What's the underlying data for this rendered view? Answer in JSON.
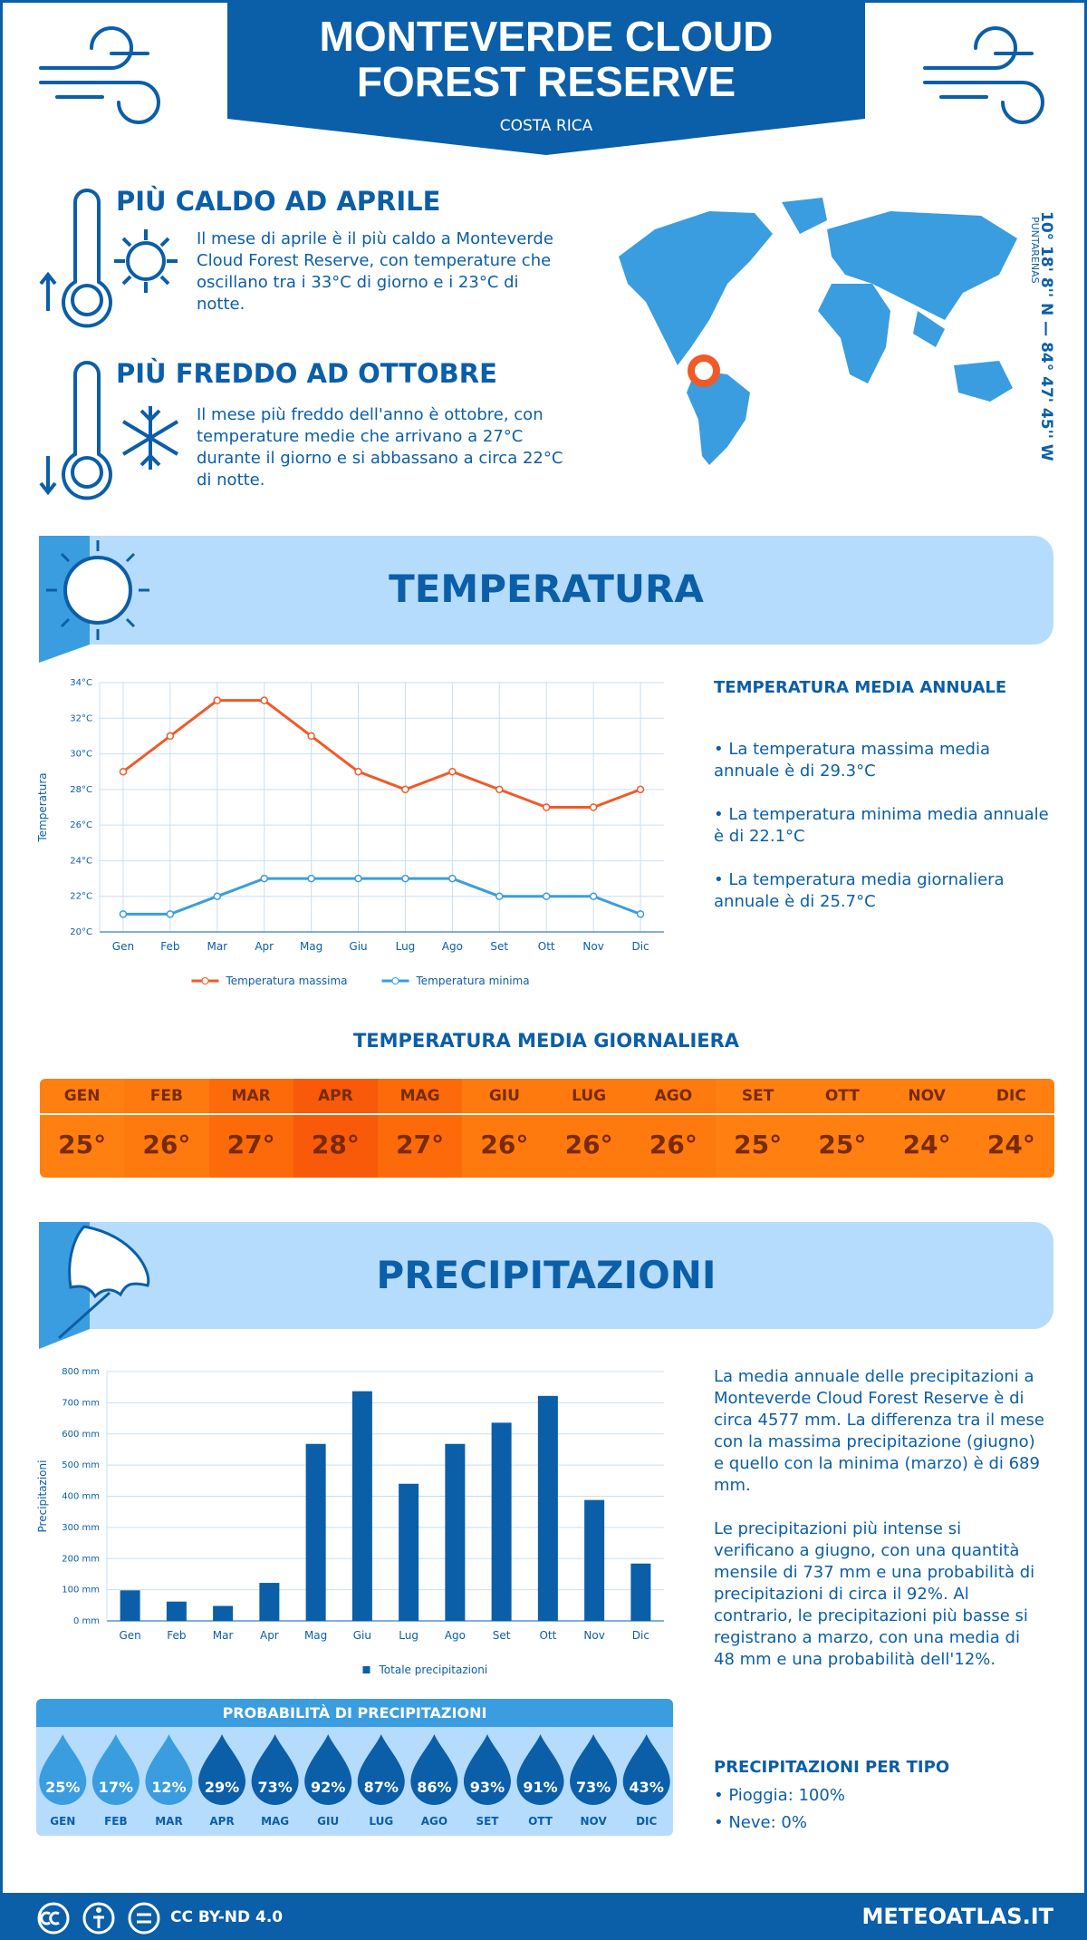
{
  "header": {
    "title": "MONTEVERDE CLOUD FOREST RESERVE",
    "subtitle": "COSTA RICA"
  },
  "hottest": {
    "title": "PIÙ CALDO AD APRILE",
    "text": "Il mese di aprile è il più caldo a Monteverde Cloud Forest Reserve, con temperature che oscillano tra i 33°C di giorno e i 23°C di notte."
  },
  "coldest": {
    "title": "PIÙ FREDDO AD OTTOBRE",
    "text": "Il mese più freddo dell'anno è ottobre, con temperature medie che arrivano a 27°C durante il giorno e si abbassano a circa 22°C di notte."
  },
  "coords": {
    "label": "10° 18' 8'' N — 84° 47' 45'' W",
    "region": "PUNTARENAS"
  },
  "temperature_section": {
    "title": "TEMPERATURA"
  },
  "precipitation_section": {
    "title": "PRECIPITAZIONI"
  },
  "chart_data": [
    {
      "type": "line",
      "y_label": "Temperatura",
      "categories": [
        "Gen",
        "Feb",
        "Mar",
        "Apr",
        "Mag",
        "Giu",
        "Lug",
        "Ago",
        "Set",
        "Ott",
        "Nov",
        "Dic"
      ],
      "series": [
        {
          "name": "Temperatura massima",
          "color": "#f05a28",
          "values": [
            29,
            31,
            33,
            33,
            31,
            29,
            28,
            29,
            28,
            27,
            27,
            28
          ]
        },
        {
          "name": "Temperatura minima",
          "color": "#3a9de0",
          "values": [
            21,
            21,
            22,
            23,
            23,
            23,
            23,
            23,
            22,
            22,
            22,
            21
          ]
        }
      ],
      "ylim": [
        20,
        34
      ],
      "yticks": [
        {
          "value": 20,
          "label": "20°C"
        },
        {
          "value": 22,
          "label": "22°C"
        },
        {
          "value": 24,
          "label": "24°C"
        },
        {
          "value": 26,
          "label": "26°C"
        },
        {
          "value": 28,
          "label": "28°C"
        },
        {
          "value": 30,
          "label": "30°C"
        },
        {
          "value": 32,
          "label": "32°C"
        },
        {
          "value": 34,
          "label": "34°C"
        }
      ],
      "grid": true
    },
    {
      "type": "bar",
      "y_label": "Precipitazioni",
      "categories": [
        "Gen",
        "Feb",
        "Mar",
        "Apr",
        "Mag",
        "Giu",
        "Lug",
        "Ago",
        "Set",
        "Ott",
        "Nov",
        "Dic"
      ],
      "series": [
        {
          "name": "Totale precipitazioni",
          "color": "#0b5ea8",
          "values": [
            98,
            62,
            48,
            122,
            568,
            737,
            440,
            568,
            636,
            722,
            388,
            184
          ]
        }
      ],
      "ylim": [
        0,
        800
      ],
      "yticks": [
        {
          "value": 0,
          "label": "0 mm"
        },
        {
          "value": 100,
          "label": "100 mm"
        },
        {
          "value": 200,
          "label": "200 mm"
        },
        {
          "value": 300,
          "label": "300 mm"
        },
        {
          "value": 400,
          "label": "400 mm"
        },
        {
          "value": 500,
          "label": "500 mm"
        },
        {
          "value": 600,
          "label": "600 mm"
        },
        {
          "value": 700,
          "label": "700 mm"
        },
        {
          "value": 800,
          "label": "800 mm"
        }
      ],
      "grid": true
    }
  ],
  "annual_temp": {
    "title": "TEMPERATURA MEDIA ANNUALE",
    "items": [
      "• La temperatura massima media annuale è di 29.3°C",
      "• La temperatura minima media annuale è di 22.1°C",
      "• La temperatura media giornaliera annuale è di 25.7°C"
    ]
  },
  "daily_temp": {
    "title": "TEMPERATURA MEDIA GIORNALIERA",
    "months": [
      "GEN",
      "FEB",
      "MAR",
      "APR",
      "MAG",
      "GIU",
      "LUG",
      "AGO",
      "SET",
      "OTT",
      "NOV",
      "DIC"
    ],
    "values": [
      "25°",
      "26°",
      "27°",
      "28°",
      "27°",
      "26°",
      "26°",
      "26°",
      "25°",
      "25°",
      "24°",
      "24°"
    ]
  },
  "precip_text": [
    "La media annuale delle precipitazioni a Monteverde Cloud Forest Reserve è di circa 4577 mm. La differenza tra il mese con la massima precipitazione (giugno) e quello con la minima (marzo) è di 689 mm.",
    "Le precipitazioni più intense si verificano a giugno, con una quantità mensile di 737 mm e una probabilità di precipitazioni di circa il 92%. Al contrario, le precipitazioni più basse si registrano a marzo, con una media di 48 mm e una probabilità dell'12%."
  ],
  "probability": {
    "title": "PROBABILITÀ DI PRECIPITAZIONI",
    "months": [
      "GEN",
      "FEB",
      "MAR",
      "APR",
      "MAG",
      "GIU",
      "LUG",
      "AGO",
      "SET",
      "OTT",
      "NOV",
      "DIC"
    ],
    "values": [
      "25%",
      "17%",
      "12%",
      "29%",
      "73%",
      "92%",
      "87%",
      "86%",
      "93%",
      "91%",
      "73%",
      "43%"
    ]
  },
  "precip_type": {
    "title": "PRECIPITAZIONI PER TIPO",
    "items": [
      "• Pioggia: 100%",
      "• Neve: 0%"
    ]
  },
  "footer": {
    "license": "CC BY-ND 4.0",
    "site": "METEOATLAS.IT"
  }
}
